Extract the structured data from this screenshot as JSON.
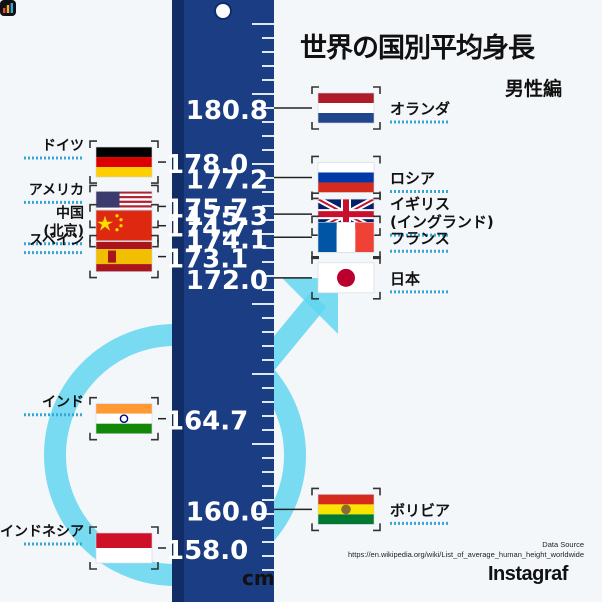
{
  "title": "世界の国別平均身長",
  "subtitle": "男性編",
  "source_label": "Data Source",
  "source_url": "https://en.wikipedia.org/wiki/List_of_average_human_height_worldwide",
  "brand": "Instagraf",
  "unit": "cm",
  "colors": {
    "ruler": "#1a3d83",
    "ruler_dark": "#122d66",
    "accent": "#61d6f0",
    "dash": "#36a6d6",
    "text": "#111111"
  },
  "chart_data": {
    "type": "bar",
    "ylabel": "cm",
    "countries": [
      {
        "name": "オランダ",
        "value": 180.8,
        "side": "right",
        "flag": "netherlands"
      },
      {
        "name": "ドイツ",
        "value": 178.0,
        "side": "left",
        "flag": "germany"
      },
      {
        "name": "ロシア",
        "value": 177.2,
        "side": "right",
        "flag": "russia"
      },
      {
        "name": "アメリカ",
        "value": 175.7,
        "side": "left",
        "flag": "usa"
      },
      {
        "name": "イギリス\n(イングランド)",
        "value": 175.3,
        "side": "right",
        "flag": "uk"
      },
      {
        "name": "中国\n(北京)",
        "value": 174.7,
        "side": "left",
        "flag": "china"
      },
      {
        "name": "フランス",
        "value": 174.1,
        "side": "right",
        "flag": "france"
      },
      {
        "name": "スペイン",
        "value": 173.1,
        "side": "left",
        "flag": "spain"
      },
      {
        "name": "日本",
        "value": 172.0,
        "side": "right",
        "flag": "japan"
      },
      {
        "name": "インド",
        "value": 164.7,
        "side": "left",
        "flag": "india"
      },
      {
        "name": "ボリビア",
        "value": 160.0,
        "side": "right",
        "flag": "bolivia"
      },
      {
        "name": "インドネシア",
        "value": 158.0,
        "side": "left",
        "flag": "indonesia"
      }
    ]
  }
}
